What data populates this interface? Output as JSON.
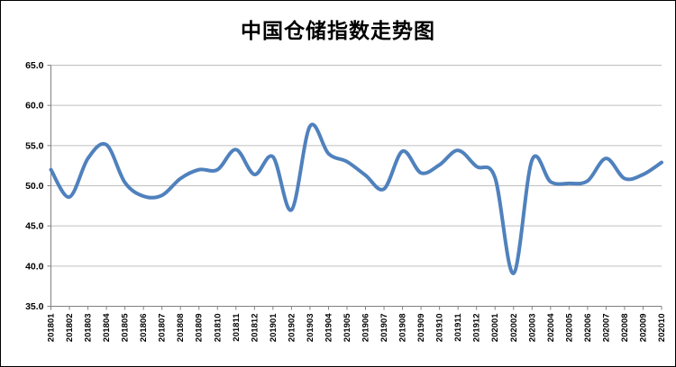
{
  "chart_data": {
    "type": "line",
    "title": "中国仓储指数走势图",
    "categories": [
      "201801",
      "201802",
      "201803",
      "201804",
      "201805",
      "201806",
      "201807",
      "201808",
      "201809",
      "201810",
      "201811",
      "201812",
      "201901",
      "201902",
      "201903",
      "201904",
      "201905",
      "201906",
      "201907",
      "201908",
      "201909",
      "201910",
      "201911",
      "201912",
      "202001",
      "202002",
      "202003",
      "202004",
      "202005",
      "202006",
      "202007",
      "202008",
      "202009",
      "202010"
    ],
    "series": [
      {
        "name": "仓储指数",
        "values": [
          52.0,
          48.6,
          53.4,
          55.1,
          50.4,
          48.7,
          48.8,
          50.9,
          52.0,
          52.0,
          54.5,
          51.4,
          53.6,
          47.0,
          57.4,
          54.0,
          53.0,
          51.3,
          49.6,
          54.3,
          51.6,
          52.6,
          54.4,
          52.4,
          51.0,
          39.1,
          53.2,
          50.5,
          50.3,
          50.6,
          53.4,
          50.9,
          51.4,
          52.9
        ]
      }
    ],
    "xlabel": "",
    "ylabel": "",
    "ylim": [
      35.0,
      65.0
    ],
    "ytick_step": 5.0,
    "ytick_labels": [
      "65.0",
      "60.0",
      "55.0",
      "50.0",
      "45.0",
      "40.0",
      "35.0"
    ],
    "grid": "horizontal",
    "legend_position": "none",
    "smooth": true,
    "colors": {
      "line": "#4F81BD",
      "gridline": "#BFBFBF",
      "axis": "#808080",
      "text": "#000000",
      "background": "#FFFFFF"
    }
  }
}
